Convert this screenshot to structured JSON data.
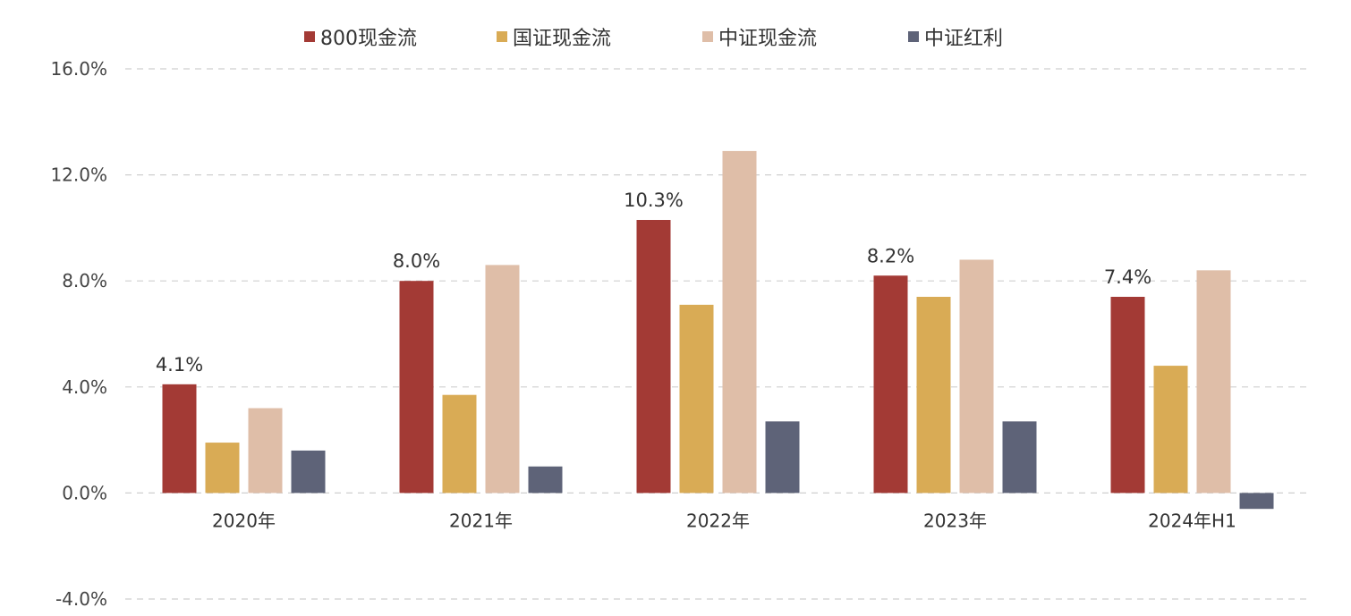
{
  "chart_data": {
    "type": "bar",
    "categories": [
      "2020年",
      "2021年",
      "2022年",
      "2023年",
      "2024年H1"
    ],
    "series": [
      {
        "name": "800现金流",
        "color": "#A33A35",
        "values": [
          4.1,
          8.0,
          10.3,
          8.2,
          7.4
        ]
      },
      {
        "name": "国证现金流",
        "color": "#D9AB55",
        "values": [
          1.9,
          3.7,
          7.1,
          7.4,
          4.8
        ]
      },
      {
        "name": "中证现金流",
        "color": "#DFBEA8",
        "values": [
          3.2,
          8.6,
          12.9,
          8.8,
          8.4
        ]
      },
      {
        "name": "中证红利",
        "color": "#5E6378",
        "values": [
          1.6,
          1.0,
          2.7,
          2.7,
          -0.6
        ]
      }
    ],
    "data_labels": [
      {
        "series": 0,
        "index": 0,
        "text": "4.1%"
      },
      {
        "series": 0,
        "index": 1,
        "text": "8.0%"
      },
      {
        "series": 0,
        "index": 2,
        "text": "10.3%"
      },
      {
        "series": 0,
        "index": 3,
        "text": "8.2%"
      },
      {
        "series": 0,
        "index": 4,
        "text": "7.4%"
      }
    ],
    "yticks": [
      {
        "value": 16,
        "label": "16.0%"
      },
      {
        "value": 12,
        "label": "12.0%"
      },
      {
        "value": 8,
        "label": "8.0%"
      },
      {
        "value": 4,
        "label": "4.0%"
      },
      {
        "value": 0,
        "label": "0.0%"
      },
      {
        "value": -4,
        "label": "-4.0%"
      }
    ],
    "ylim": [
      -4,
      16
    ],
    "grid": true,
    "legend_position": "top-center",
    "title": "",
    "xlabel": "",
    "ylabel": ""
  }
}
